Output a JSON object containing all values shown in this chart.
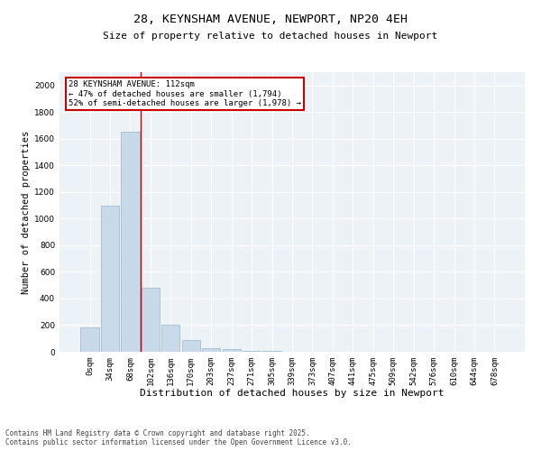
{
  "title": "28, KEYNSHAM AVENUE, NEWPORT, NP20 4EH",
  "subtitle": "Size of property relative to detached houses in Newport",
  "xlabel": "Distribution of detached houses by size in Newport",
  "ylabel": "Number of detached properties",
  "bar_color": "#c8d9ea",
  "bar_edge_color": "#9ab5cc",
  "vline_color": "#cc0000",
  "vline_x_index": 3,
  "annotation_title": "28 KEYNSHAM AVENUE: 112sqm",
  "annotation_line1": "← 47% of detached houses are smaller (1,794)",
  "annotation_line2": "52% of semi-detached houses are larger (1,978) →",
  "annotation_box_color": "#ffffff",
  "annotation_box_edge": "#cc0000",
  "categories": [
    "0sqm",
    "34sqm",
    "68sqm",
    "102sqm",
    "136sqm",
    "170sqm",
    "203sqm",
    "237sqm",
    "271sqm",
    "305sqm",
    "339sqm",
    "373sqm",
    "407sqm",
    "441sqm",
    "475sqm",
    "509sqm",
    "542sqm",
    "576sqm",
    "610sqm",
    "644sqm",
    "678sqm"
  ],
  "values": [
    180,
    1100,
    1650,
    480,
    200,
    90,
    30,
    20,
    10,
    5,
    0,
    0,
    0,
    0,
    0,
    0,
    0,
    0,
    0,
    0,
    0
  ],
  "ylim": [
    0,
    2100
  ],
  "yticks": [
    0,
    200,
    400,
    600,
    800,
    1000,
    1200,
    1400,
    1600,
    1800,
    2000
  ],
  "bg_color": "#edf2f7",
  "grid_color": "#ffffff",
  "footer_line1": "Contains HM Land Registry data © Crown copyright and database right 2025.",
  "footer_line2": "Contains public sector information licensed under the Open Government Licence v3.0.",
  "title_fontsize": 9.5,
  "subtitle_fontsize": 8,
  "xlabel_fontsize": 8,
  "ylabel_fontsize": 7.5,
  "tick_fontsize": 6.5,
  "annot_fontsize": 6.5,
  "footer_fontsize": 5.5
}
